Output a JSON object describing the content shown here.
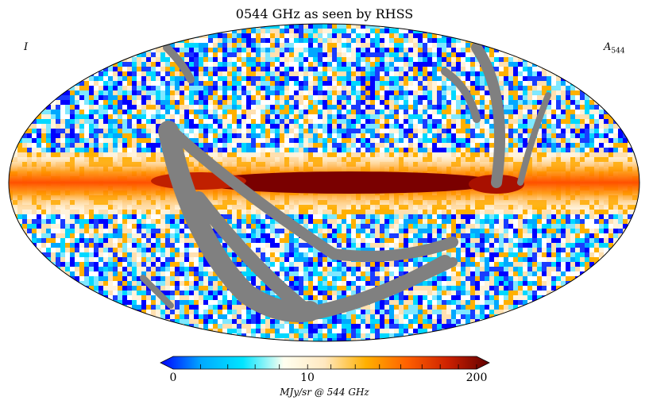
{
  "title": "0544 GHz as seen by RHSS",
  "corner_left": "I",
  "corner_right_main": "A",
  "corner_right_sub": "544",
  "colorbar": {
    "ticks": [
      "0",
      "10",
      "200"
    ],
    "tick_fractions": [
      0,
      0.443,
      1.0
    ],
    "unit": "MJy/sr @ 544 GHz",
    "stops": [
      "#0000ff",
      "#00aaff",
      "#00e5ff",
      "#fffff0",
      "#ffe8c0",
      "#ffb000",
      "#ff6000",
      "#cc2000",
      "#600000"
    ]
  },
  "colors": {
    "mask": "#808080",
    "band_core": "#7a0000",
    "band_edge": "#ff8a00"
  }
}
